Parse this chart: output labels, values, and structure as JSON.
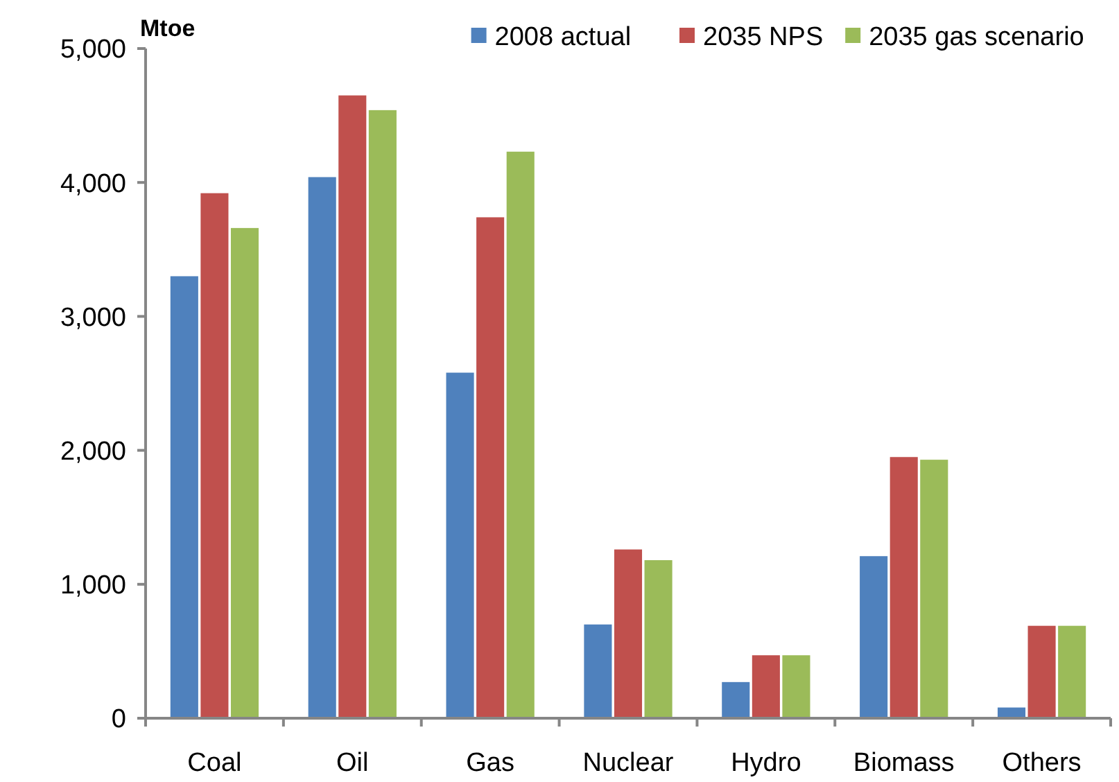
{
  "chart_data": {
    "type": "bar",
    "ylabel": "Mtoe",
    "categories": [
      "Coal",
      "Oil",
      "Gas",
      "Nuclear",
      "Hydro",
      "Biomass",
      "Others"
    ],
    "series": [
      {
        "name": "2008 actual",
        "color": "#4f81bd",
        "values": [
          3300,
          4040,
          2580,
          700,
          270,
          1210,
          80
        ]
      },
      {
        "name": "2035 NPS",
        "color": "#c0504d",
        "values": [
          3920,
          4650,
          3740,
          1260,
          470,
          1950,
          690
        ]
      },
      {
        "name": "2035 gas scenario",
        "color": "#9bbb59",
        "values": [
          3660,
          4540,
          4230,
          1180,
          470,
          1930,
          690
        ]
      }
    ],
    "ylim": [
      0,
      5000
    ],
    "yticks": [
      {
        "value": 0,
        "label": "0"
      },
      {
        "value": 1000,
        "label": "1,000"
      },
      {
        "value": 2000,
        "label": "2,000"
      },
      {
        "value": 3000,
        "label": "3,000"
      },
      {
        "value": 4000,
        "label": "4,000"
      },
      {
        "value": 5000,
        "label": "5,000"
      }
    ],
    "grid": false,
    "legend": "top right"
  }
}
